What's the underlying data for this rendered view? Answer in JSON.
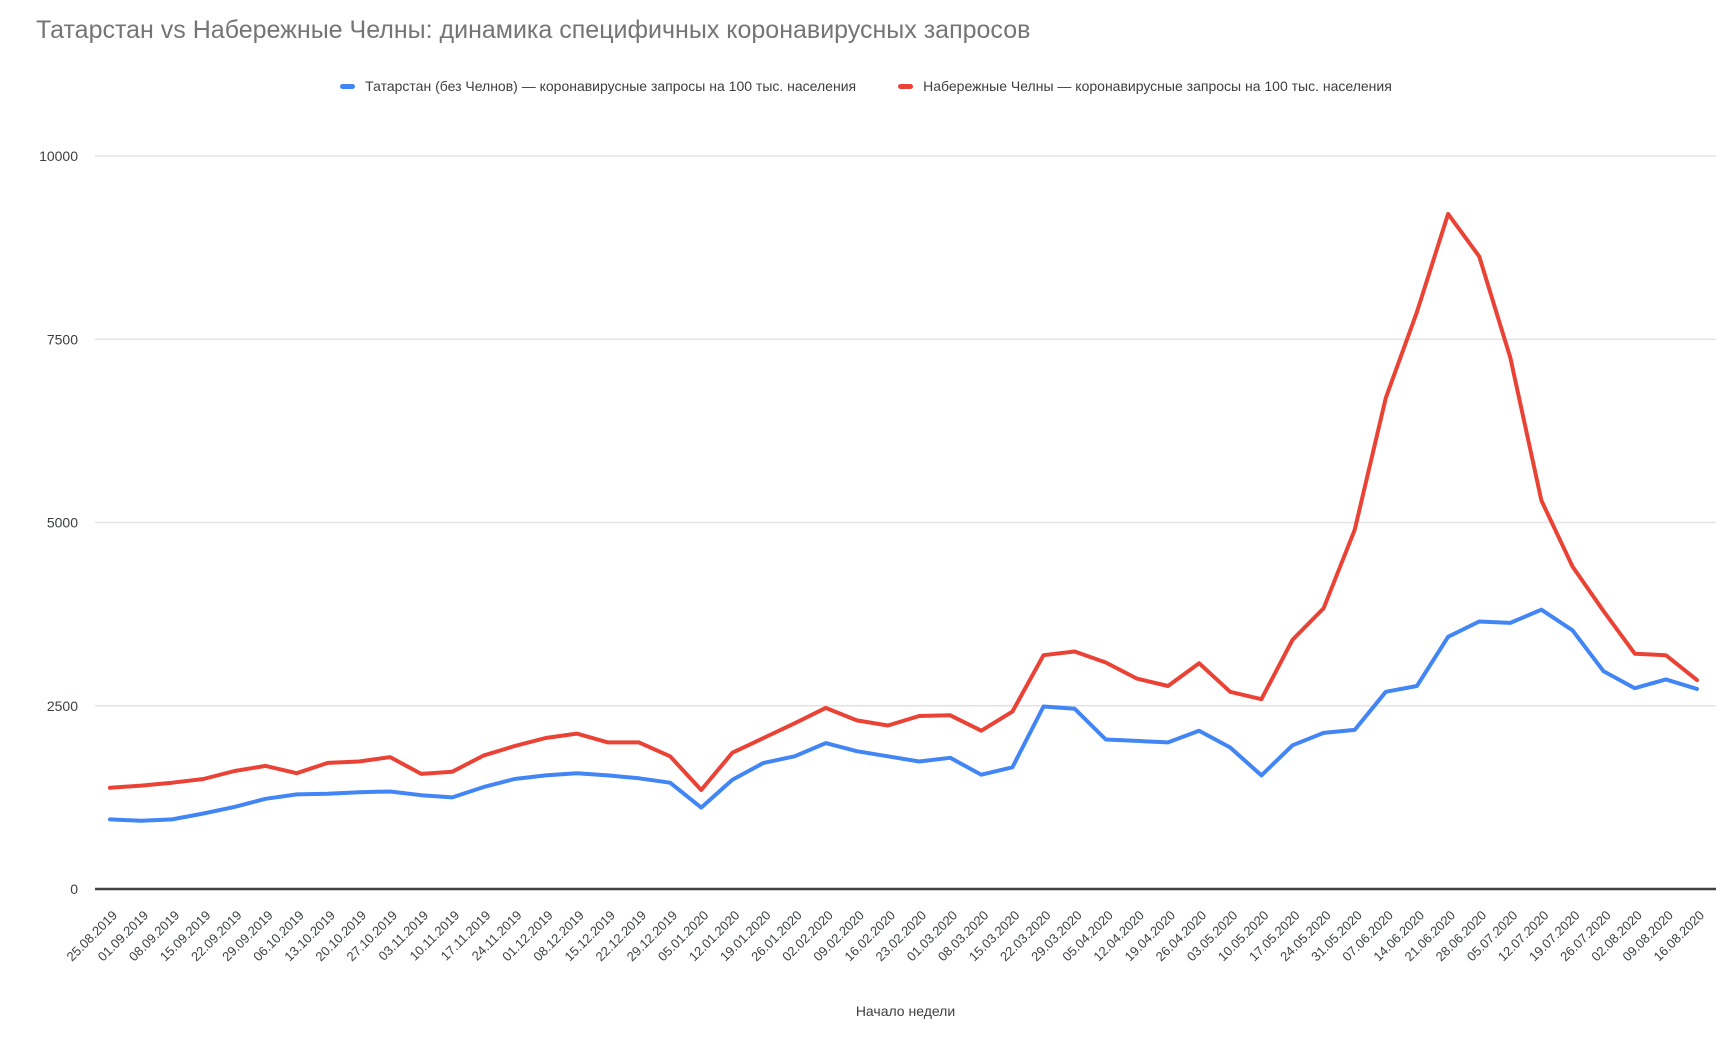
{
  "title": "Татарстан vs Набережные Челны: динамика специфичных коронавирусных запросов",
  "chart_data": {
    "type": "line",
    "title": "Татарстан vs Набережные Челны: динамика специфичных коронавирусных запросов",
    "xlabel": "Начало недели",
    "ylabel": "",
    "ylim": [
      0,
      10000
    ],
    "y_ticks": [
      0,
      2500,
      5000,
      7500,
      10000
    ],
    "grid": true,
    "legend_position": "top",
    "categories": [
      "25.08.2019",
      "01.09.2019",
      "08.09.2019",
      "15.09.2019",
      "22.09.2019",
      "29.09.2019",
      "06.10.2019",
      "13.10.2019",
      "20.10.2019",
      "27.10.2019",
      "03.11.2019",
      "10.11.2019",
      "17.11.2019",
      "24.11.2019",
      "01.12.2019",
      "08.12.2019",
      "15.12.2019",
      "22.12.2019",
      "29.12.2019",
      "05.01.2020",
      "12.01.2020",
      "19.01.2020",
      "26.01.2020",
      "02.02.2020",
      "09.02.2020",
      "16.02.2020",
      "23.02.2020",
      "01.03.2020",
      "08.03.2020",
      "15.03.2020",
      "22.03.2020",
      "29.03.2020",
      "05.04.2020",
      "12.04.2020",
      "19.04.2020",
      "26.04.2020",
      "03.05.2020",
      "10.05.2020",
      "17.05.2020",
      "24.05.2020",
      "31.05.2020",
      "07.06.2020",
      "14.06.2020",
      "21.06.2020",
      "28.06.2020",
      "05.07.2020",
      "12.07.2020",
      "19.07.2020",
      "26.07.2020",
      "02.08.2020",
      "09.08.2020",
      "16.08.2020"
    ],
    "series": [
      {
        "name": "Татарстан (без Челнов) — коронавирусные запросы на 100 тыс. населения",
        "color": "#4285f4",
        "values": [
          950,
          930,
          950,
          1030,
          1120,
          1230,
          1290,
          1300,
          1320,
          1330,
          1280,
          1250,
          1390,
          1500,
          1550,
          1580,
          1550,
          1510,
          1450,
          1110,
          1490,
          1720,
          1810,
          1990,
          1880,
          1810,
          1740,
          1790,
          1560,
          1660,
          2490,
          2460,
          2040,
          2020,
          2000,
          2160,
          1930,
          1550,
          1960,
          2130,
          2170,
          2690,
          2770,
          3440,
          3650,
          3630,
          3810,
          3530,
          2970,
          2740,
          2860,
          2730
        ]
      },
      {
        "name": "Набережные Челны — коронавирусные запросы на 100 тыс. населения",
        "color": "#ea4335",
        "values": [
          1380,
          1410,
          1450,
          1500,
          1610,
          1680,
          1580,
          1720,
          1740,
          1800,
          1570,
          1600,
          1820,
          1950,
          2060,
          2120,
          2000,
          2000,
          1810,
          1350,
          1860,
          2060,
          2260,
          2470,
          2300,
          2230,
          2360,
          2370,
          2160,
          2420,
          3190,
          3240,
          3090,
          2870,
          2770,
          3080,
          2690,
          2590,
          3400,
          3830,
          4900,
          6700,
          7870,
          9210,
          8630,
          7250,
          5300,
          4400,
          3790,
          3210,
          3190,
          2850
        ]
      }
    ]
  }
}
